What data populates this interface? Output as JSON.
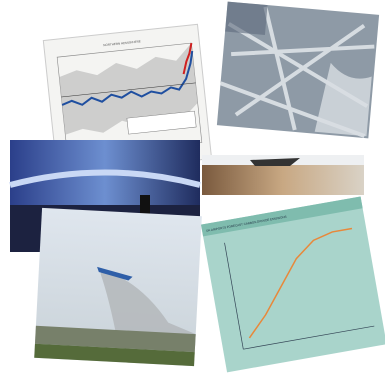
{
  "collage": {
    "chart_titles": [
      "NORTHERN HEMISPHERE",
      "UK AIRPORTS FORECAST CARBON DIOXIDE EMISSIONS"
    ]
  }
}
